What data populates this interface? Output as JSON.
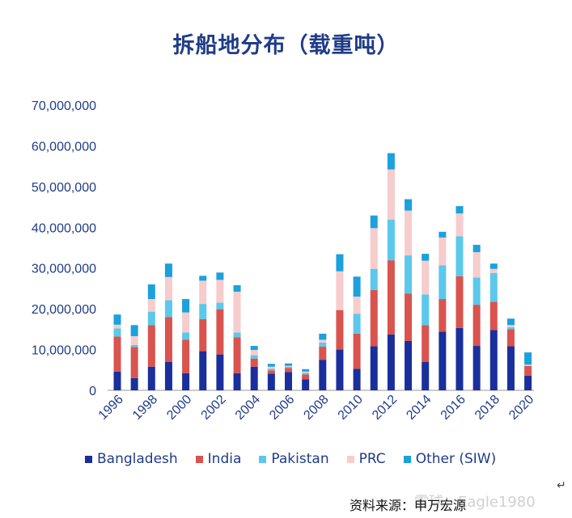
{
  "chart_data": {
    "type": "bar",
    "stacked": true,
    "title": "拆船地分布（载重吨）",
    "categories": [
      "1996",
      "1997",
      "1998",
      "1999",
      "2000",
      "2001",
      "2002",
      "2003",
      "2004",
      "2005",
      "2006",
      "2007",
      "2008",
      "2009",
      "2010",
      "2011",
      "2012",
      "2013",
      "2014",
      "2015",
      "2016",
      "2017",
      "2018",
      "2019",
      "2020"
    ],
    "x_tick_labels": [
      "1996",
      "1998",
      "2000",
      "2002",
      "2004",
      "2006",
      "2008",
      "2010",
      "2012",
      "2014",
      "2016",
      "2018",
      "2020"
    ],
    "y_ticks": [
      "0",
      "10,000,000",
      "20,000,000",
      "30,000,000",
      "40,000,000",
      "50,000,000",
      "60,000,000",
      "70,000,000"
    ],
    "ylim": [
      0,
      70000000
    ],
    "series": [
      {
        "name": "Bangladesh",
        "color": "#1a2f9c",
        "values": [
          4600000,
          3000000,
          5800000,
          7000000,
          4200000,
          9600000,
          8800000,
          4200000,
          5800000,
          4100000,
          4500000,
          2700000,
          7500000,
          10000000,
          5300000,
          10800000,
          13700000,
          12100000,
          7000000,
          14400000,
          15300000,
          10900000,
          14800000,
          10800000,
          3600000
        ]
      },
      {
        "name": "India",
        "color": "#d9534f",
        "values": [
          8600000,
          7600000,
          10200000,
          11000000,
          8200000,
          7900000,
          11100000,
          8800000,
          2000000,
          800000,
          1000000,
          1200000,
          3200000,
          9700000,
          8600000,
          13800000,
          18200000,
          11600000,
          9000000,
          8000000,
          12700000,
          10100000,
          6900000,
          4200000,
          2400000
        ]
      },
      {
        "name": "Pakistan",
        "color": "#5bc8ec",
        "values": [
          2000000,
          500000,
          3300000,
          4100000,
          1800000,
          3700000,
          1600000,
          1200000,
          800000,
          400000,
          300000,
          400000,
          1000000,
          0,
          4900000,
          5200000,
          10000000,
          9400000,
          7500000,
          8300000,
          9800000,
          6700000,
          7100000,
          500000,
          0
        ]
      },
      {
        "name": "PRC",
        "color": "#f6cccc",
        "values": [
          900000,
          2200000,
          3100000,
          5700000,
          4900000,
          5700000,
          5600000,
          10000000,
          1300000,
          500000,
          200000,
          300000,
          700000,
          9500000,
          4200000,
          10000000,
          12300000,
          11000000,
          8300000,
          6800000,
          5600000,
          6200000,
          1000000,
          500000,
          300000
        ]
      },
      {
        "name": "Other (SIW)",
        "color": "#1ba1dc",
        "values": [
          2500000,
          2700000,
          3600000,
          3300000,
          3300000,
          1200000,
          1800000,
          1600000,
          1000000,
          700000,
          600000,
          600000,
          1500000,
          4200000,
          4900000,
          3100000,
          4000000,
          2800000,
          1700000,
          1400000,
          1800000,
          1800000,
          1300000,
          1600000,
          3000000
        ]
      }
    ]
  },
  "footer": {
    "source": "资料来源：申万宏源",
    "watermark": "雪球：Eagle1980",
    "return_mark": "↵"
  }
}
